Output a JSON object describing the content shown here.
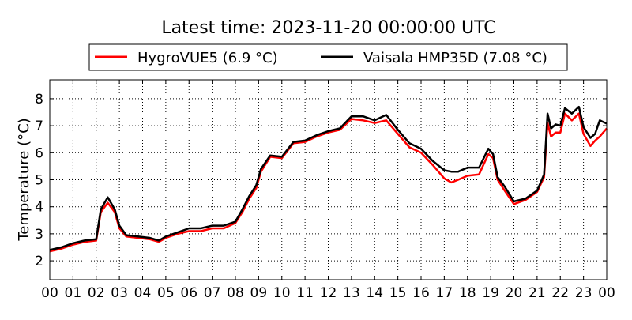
{
  "chart_data": {
    "type": "line",
    "title": "Latest time: 2023-11-20 00:00:00 UTC",
    "xlabel": "",
    "ylabel": "Temperature (°C)",
    "xlim": [
      0,
      24
    ],
    "ylim": [
      1.3,
      8.7
    ],
    "x_ticks": [
      0,
      1,
      2,
      3,
      4,
      5,
      6,
      7,
      8,
      9,
      10,
      11,
      12,
      13,
      14,
      15,
      16,
      17,
      18,
      19,
      20,
      21,
      22,
      23,
      24
    ],
    "x_tick_labels": [
      "00",
      "01",
      "02",
      "03",
      "04",
      "05",
      "06",
      "07",
      "08",
      "09",
      "10",
      "11",
      "12",
      "13",
      "14",
      "15",
      "16",
      "17",
      "18",
      "19",
      "20",
      "21",
      "22",
      "23",
      "00"
    ],
    "y_ticks": [
      2,
      3,
      4,
      5,
      6,
      7,
      8
    ],
    "y_tick_labels": [
      "2",
      "3",
      "4",
      "5",
      "6",
      "7",
      "8"
    ],
    "grid": true,
    "legend_position": "top-center",
    "series": [
      {
        "name": "HygroVUE5 (6.9 °C)",
        "color": "#ff0000",
        "x": [
          0,
          0.5,
          1,
          1.5,
          2,
          2.2,
          2.5,
          2.8,
          3,
          3.3,
          3.8,
          4.3,
          4.7,
          5,
          5.5,
          6,
          6.5,
          7,
          7.5,
          8,
          8.3,
          8.6,
          8.9,
          9.1,
          9.5,
          10,
          10.5,
          11,
          11.5,
          12,
          12.5,
          13,
          13.5,
          14,
          14.5,
          15,
          15.5,
          16,
          16.5,
          17,
          17.3,
          17.6,
          18,
          18.5,
          18.9,
          19.1,
          19.3,
          19.6,
          20,
          20.5,
          21,
          21.3,
          21.45,
          21.6,
          21.8,
          22,
          22.2,
          22.5,
          22.8,
          23,
          23.3,
          23.5,
          23.7,
          24
        ],
        "y": [
          2.35,
          2.45,
          2.6,
          2.7,
          2.75,
          3.8,
          4.15,
          3.8,
          3.2,
          2.9,
          2.85,
          2.8,
          2.7,
          2.85,
          3.0,
          3.1,
          3.1,
          3.2,
          3.2,
          3.4,
          3.8,
          4.3,
          4.7,
          5.3,
          5.85,
          5.8,
          6.35,
          6.4,
          6.6,
          6.75,
          6.85,
          7.25,
          7.2,
          7.1,
          7.2,
          6.7,
          6.2,
          6.0,
          5.55,
          5.05,
          4.9,
          5.0,
          5.15,
          5.2,
          5.95,
          5.8,
          5.0,
          4.6,
          4.1,
          4.25,
          4.55,
          5.1,
          7.1,
          6.6,
          6.75,
          6.75,
          7.45,
          7.2,
          7.45,
          6.7,
          6.25,
          6.45,
          6.6,
          6.9
        ]
      },
      {
        "name": "Vaisala HMP35D (7.08 °C)",
        "color": "#000000",
        "x": [
          0,
          0.5,
          1,
          1.5,
          2,
          2.2,
          2.5,
          2.8,
          3,
          3.3,
          3.8,
          4.3,
          4.7,
          5,
          5.5,
          6,
          6.5,
          7,
          7.5,
          8,
          8.3,
          8.6,
          8.9,
          9.1,
          9.5,
          10,
          10.5,
          11,
          11.5,
          12,
          12.5,
          13,
          13.5,
          14,
          14.5,
          15,
          15.5,
          16,
          16.5,
          17,
          17.3,
          17.6,
          18,
          18.5,
          18.9,
          19.1,
          19.3,
          19.6,
          20,
          20.5,
          21,
          21.3,
          21.45,
          21.6,
          21.8,
          22,
          22.2,
          22.5,
          22.8,
          23,
          23.3,
          23.5,
          23.7,
          24
        ],
        "y": [
          2.4,
          2.5,
          2.65,
          2.75,
          2.8,
          3.9,
          4.35,
          3.9,
          3.3,
          2.95,
          2.9,
          2.85,
          2.75,
          2.9,
          3.05,
          3.2,
          3.2,
          3.3,
          3.3,
          3.45,
          3.9,
          4.4,
          4.8,
          5.4,
          5.9,
          5.85,
          6.4,
          6.45,
          6.65,
          6.8,
          6.9,
          7.35,
          7.35,
          7.2,
          7.4,
          6.85,
          6.35,
          6.15,
          5.7,
          5.35,
          5.3,
          5.3,
          5.45,
          5.45,
          6.15,
          5.95,
          5.1,
          4.75,
          4.2,
          4.3,
          4.6,
          5.2,
          7.45,
          6.9,
          7.05,
          7.0,
          7.65,
          7.45,
          7.7,
          6.95,
          6.55,
          6.7,
          7.2,
          7.08
        ]
      }
    ]
  }
}
